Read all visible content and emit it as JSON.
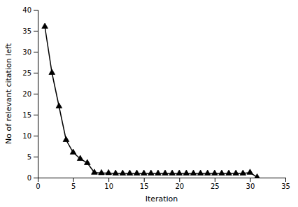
{
  "chart_data": {
    "type": "line",
    "x": [
      1,
      2,
      3,
      4,
      5,
      6,
      7,
      8,
      9,
      10,
      11,
      12,
      13,
      14,
      15,
      16,
      17,
      18,
      19,
      20,
      21,
      22,
      23,
      24,
      25,
      26,
      27,
      28,
      29,
      30,
      31
    ],
    "values": [
      36,
      25,
      17,
      9,
      6,
      4.5,
      3.5,
      1.2,
      1.1,
      1.1,
      1.0,
      1.0,
      1.0,
      1.0,
      1.0,
      1.0,
      1.0,
      1.0,
      1.0,
      1.0,
      1.0,
      1.0,
      1.0,
      1.0,
      1.0,
      1.0,
      1.0,
      1.0,
      1.0,
      1.2,
      0.1
    ],
    "xlabel": "Iteration",
    "ylabel": "No of relevant citation left",
    "xlim": [
      0,
      35
    ],
    "ylim": [
      0,
      40
    ],
    "xticks": [
      0,
      5,
      10,
      15,
      20,
      25,
      30,
      35
    ],
    "yticks": [
      0,
      5,
      10,
      15,
      20,
      25,
      30,
      35,
      40
    ],
    "color": "#000000",
    "marker": "triangle"
  }
}
